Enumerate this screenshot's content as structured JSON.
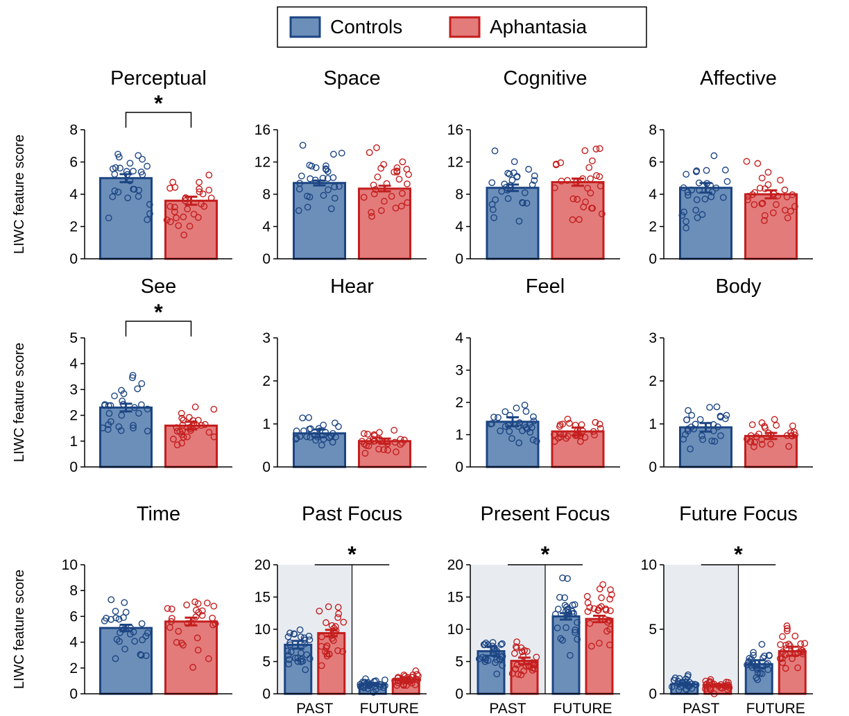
{
  "legend": {
    "position": "top-center",
    "items": [
      {
        "label": "Controls",
        "fill": "#6c8fb9",
        "stroke": "#1c4583"
      },
      {
        "label": "Aphantasia",
        "fill": "#e37b7b",
        "stroke": "#c41e1e"
      }
    ]
  },
  "colors": {
    "controls_fill": "#6c8fb9",
    "controls_stroke": "#1c4583",
    "aphantasia_fill": "#e37b7b",
    "aphantasia_stroke": "#c41e1e",
    "shade": "#e8ecf1"
  },
  "chart_data": [
    {
      "type": "bar",
      "title": "Perceptual",
      "ylabel": "LIWC feature score",
      "ylim": [
        0,
        8
      ],
      "yticks": [
        0,
        2,
        4,
        6,
        8
      ],
      "series": [
        {
          "name": "Controls",
          "values": [
            5.0
          ],
          "sem": [
            0.25
          ]
        },
        {
          "name": "Aphantasia",
          "values": [
            3.6
          ],
          "sem": [
            0.25
          ]
        }
      ],
      "significance": "*"
    },
    {
      "type": "bar",
      "title": "Space",
      "ylim": [
        0,
        16
      ],
      "yticks": [
        0,
        4,
        8,
        12,
        16
      ],
      "series": [
        {
          "name": "Controls",
          "values": [
            9.4
          ],
          "sem": [
            0.3
          ]
        },
        {
          "name": "Aphantasia",
          "values": [
            8.7
          ],
          "sem": [
            0.35
          ]
        }
      ]
    },
    {
      "type": "bar",
      "title": "Cognitive",
      "ylim": [
        0,
        16
      ],
      "yticks": [
        0,
        4,
        8,
        12,
        16
      ],
      "series": [
        {
          "name": "Controls",
          "values": [
            8.8
          ],
          "sem": [
            0.4
          ]
        },
        {
          "name": "Aphantasia",
          "values": [
            9.5
          ],
          "sem": [
            0.45
          ]
        }
      ]
    },
    {
      "type": "bar",
      "title": "Affective",
      "ylim": [
        0,
        8
      ],
      "yticks": [
        0,
        2,
        4,
        6,
        8
      ],
      "series": [
        {
          "name": "Controls",
          "values": [
            4.4
          ],
          "sem": [
            0.3
          ]
        },
        {
          "name": "Aphantasia",
          "values": [
            4.0
          ],
          "sem": [
            0.25
          ]
        }
      ]
    },
    {
      "type": "bar",
      "title": "See",
      "ylabel": "LIWC feature score",
      "ylim": [
        0,
        5
      ],
      "yticks": [
        0,
        1,
        2,
        3,
        4,
        5
      ],
      "series": [
        {
          "name": "Controls",
          "values": [
            2.3
          ],
          "sem": [
            0.15
          ]
        },
        {
          "name": "Aphantasia",
          "values": [
            1.6
          ],
          "sem": [
            0.15
          ]
        }
      ],
      "significance": "*"
    },
    {
      "type": "bar",
      "title": "Hear",
      "ylim": [
        0,
        3
      ],
      "yticks": [
        0,
        1,
        2,
        3
      ],
      "series": [
        {
          "name": "Controls",
          "values": [
            0.78
          ],
          "sem": [
            0.09
          ]
        },
        {
          "name": "Aphantasia",
          "values": [
            0.6
          ],
          "sem": [
            0.06
          ]
        }
      ]
    },
    {
      "type": "bar",
      "title": "Feel",
      "ylim": [
        0,
        4
      ],
      "yticks": [
        0,
        1,
        2,
        3,
        4
      ],
      "series": [
        {
          "name": "Controls",
          "values": [
            1.4
          ],
          "sem": [
            0.14
          ]
        },
        {
          "name": "Aphantasia",
          "values": [
            1.1
          ],
          "sem": [
            0.12
          ]
        }
      ]
    },
    {
      "type": "bar",
      "title": "Body",
      "ylim": [
        0,
        3
      ],
      "yticks": [
        0,
        1,
        2,
        3
      ],
      "series": [
        {
          "name": "Controls",
          "values": [
            0.92
          ],
          "sem": [
            0.1
          ]
        },
        {
          "name": "Aphantasia",
          "values": [
            0.72
          ],
          "sem": [
            0.07
          ]
        }
      ]
    },
    {
      "type": "bar",
      "title": "Time",
      "ylabel": "LIWC feature score",
      "ylim": [
        0,
        10
      ],
      "yticks": [
        0,
        2,
        4,
        6,
        8,
        10
      ],
      "series": [
        {
          "name": "Controls",
          "values": [
            5.1
          ],
          "sem": [
            0.25
          ]
        },
        {
          "name": "Aphantasia",
          "values": [
            5.6
          ],
          "sem": [
            0.3
          ]
        }
      ]
    },
    {
      "type": "bar",
      "title": "Past Focus",
      "ylim": [
        0,
        20
      ],
      "yticks": [
        0,
        5,
        10,
        15,
        20
      ],
      "categories": [
        "PAST",
        "FUTURE"
      ],
      "shaded_category": "PAST",
      "series": [
        {
          "name": "Controls",
          "values": [
            7.6,
            1.5
          ],
          "sem": [
            0.6,
            0.2
          ]
        },
        {
          "name": "Aphantasia",
          "values": [
            9.4,
            2.2
          ],
          "sem": [
            0.5,
            0.35
          ]
        }
      ],
      "significance": "*"
    },
    {
      "type": "bar",
      "title": "Present Focus",
      "ylim": [
        0,
        20
      ],
      "yticks": [
        0,
        5,
        10,
        15,
        20
      ],
      "categories": [
        "PAST",
        "FUTURE"
      ],
      "shaded_category": "PAST",
      "series": [
        {
          "name": "Controls",
          "values": [
            6.6,
            12.0
          ],
          "sem": [
            0.7,
            0.5
          ]
        },
        {
          "name": "Aphantasia",
          "values": [
            5.1,
            11.6
          ],
          "sem": [
            0.5,
            0.5
          ]
        }
      ],
      "significance": "*"
    },
    {
      "type": "bar",
      "title": "Future Focus",
      "ylim": [
        0,
        10
      ],
      "yticks": [
        0,
        5,
        10
      ],
      "categories": [
        "PAST",
        "FUTURE"
      ],
      "shaded_category": "PAST",
      "series": [
        {
          "name": "Controls",
          "values": [
            0.75,
            2.3
          ],
          "sem": [
            0.1,
            0.3
          ]
        },
        {
          "name": "Aphantasia",
          "values": [
            0.65,
            3.3
          ],
          "sem": [
            0.1,
            0.35
          ]
        }
      ],
      "significance": "*"
    }
  ]
}
